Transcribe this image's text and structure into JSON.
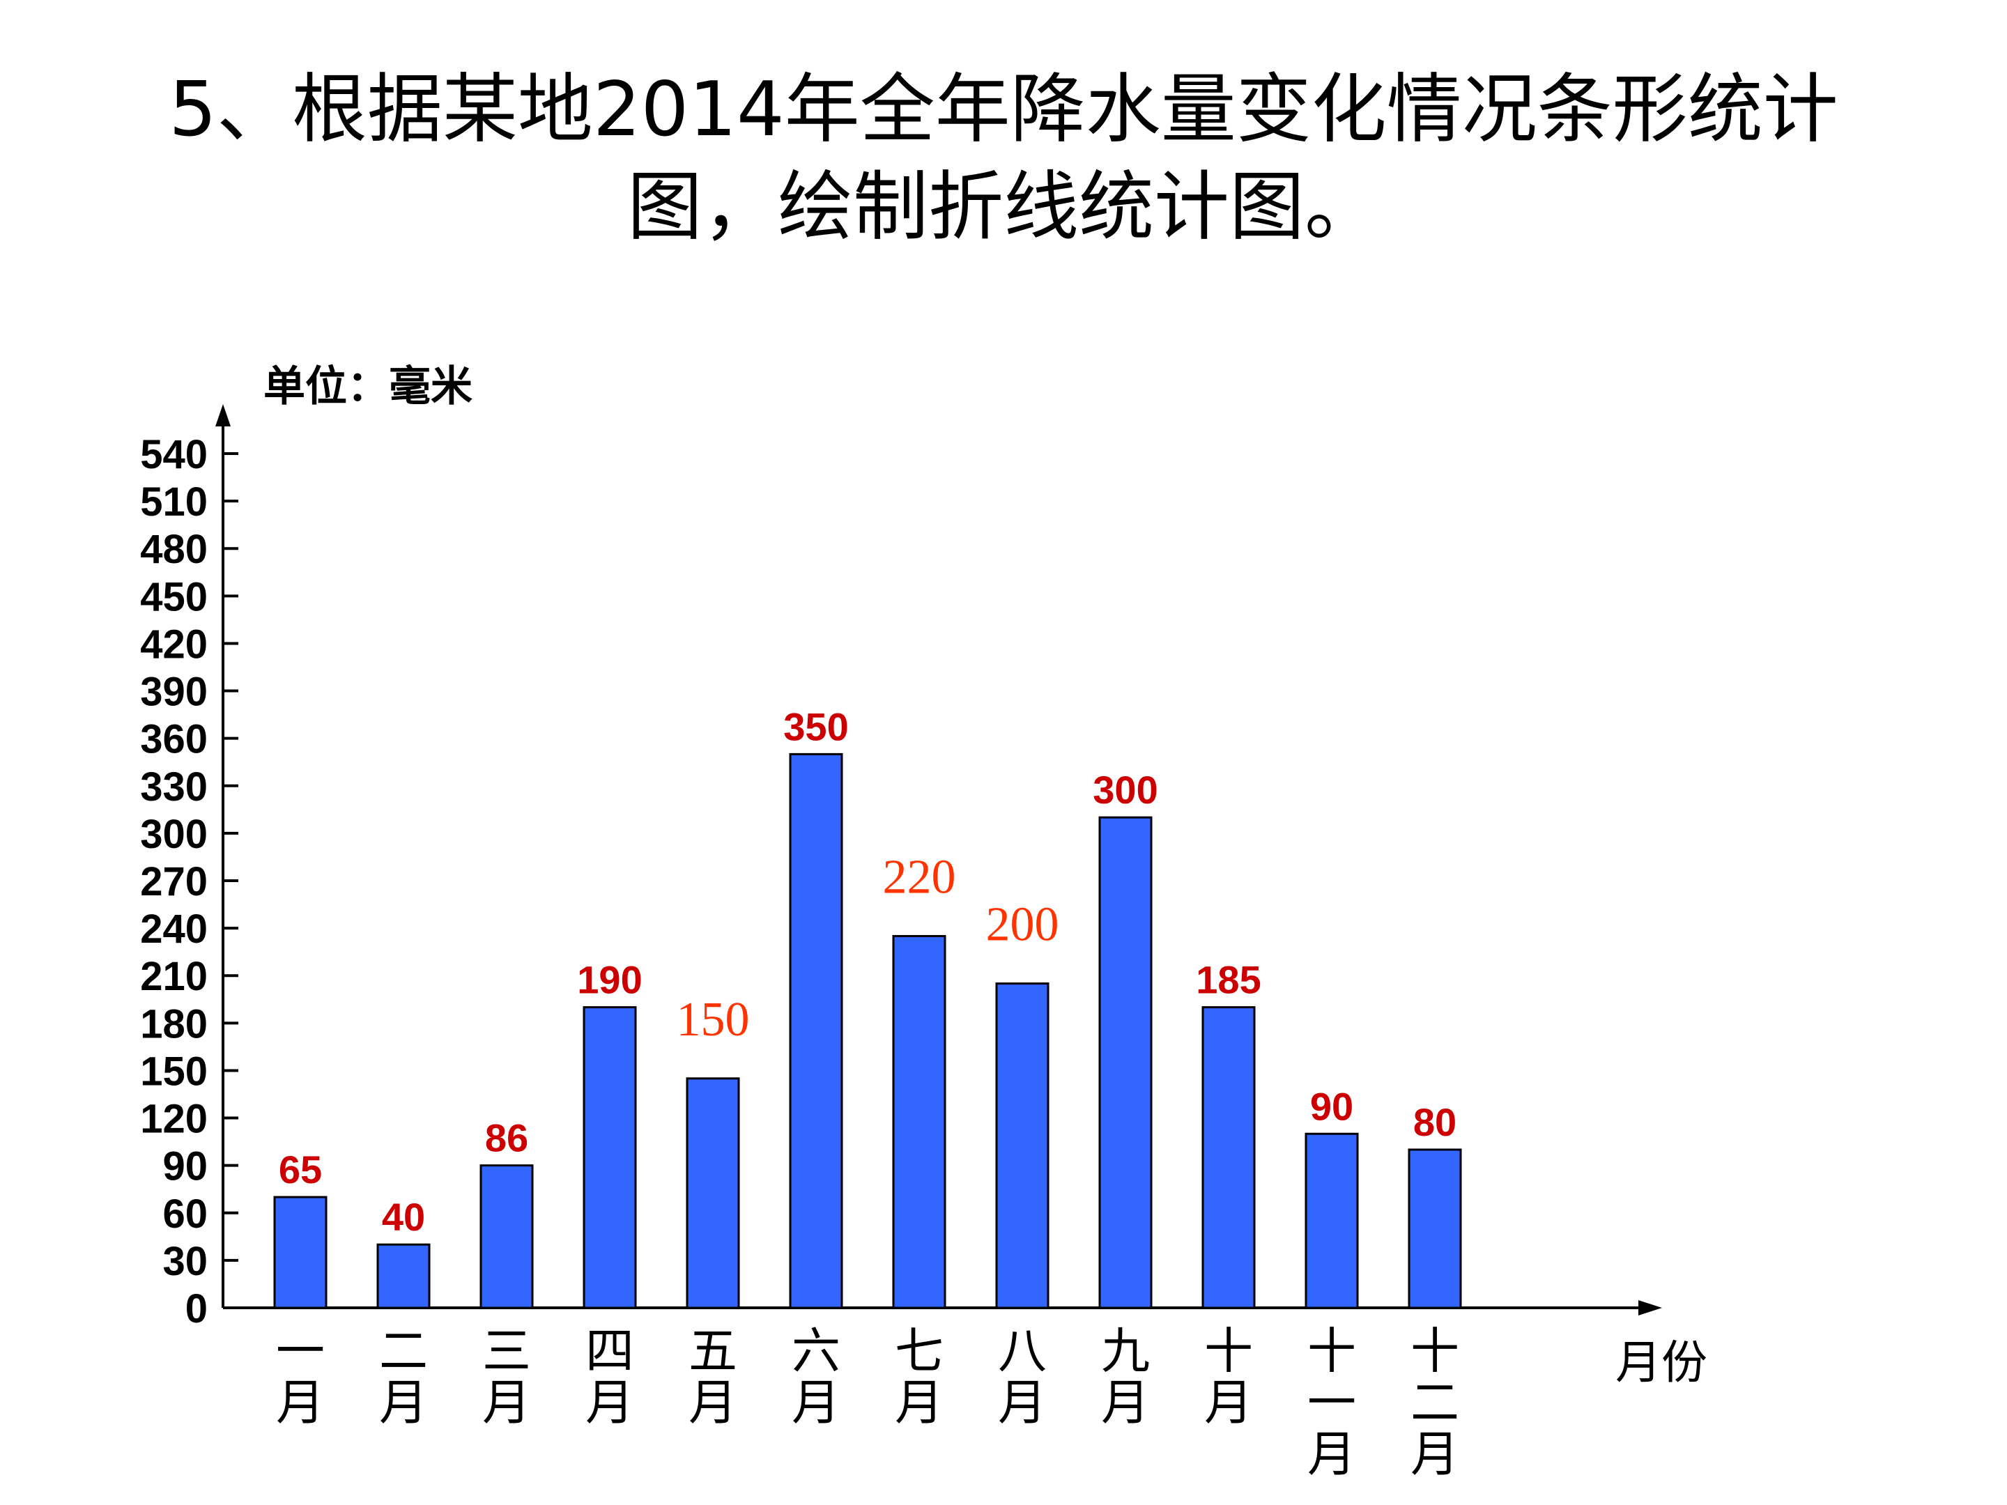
{
  "title": {
    "line1": "5、根据某地2014年全年降水量变化情况条形统计",
    "line2": "图，绘制折线统计图。"
  },
  "chart_data": {
    "type": "bar",
    "unit_label": "单位：毫米",
    "xlabel": "月份",
    "categories": [
      "一月",
      "二月",
      "三月",
      "四月",
      "五月",
      "六月",
      "七月",
      "八月",
      "九月",
      "十月",
      "十一月",
      "十二月"
    ],
    "category_lines": [
      [
        "一",
        "月"
      ],
      [
        "二",
        "月"
      ],
      [
        "三",
        "月"
      ],
      [
        "四",
        "月"
      ],
      [
        "五",
        "月"
      ],
      [
        "六",
        "月"
      ],
      [
        "七",
        "月"
      ],
      [
        "八",
        "月"
      ],
      [
        "九",
        "月"
      ],
      [
        "十",
        "月"
      ],
      [
        "十",
        "一",
        "月"
      ],
      [
        "十",
        "二",
        "月"
      ]
    ],
    "values": [
      65,
      40,
      86,
      190,
      150,
      350,
      220,
      200,
      300,
      185,
      90,
      80
    ],
    "data_labels": [
      "65",
      "40",
      "86",
      "190",
      "150",
      "350",
      "220",
      "200",
      "300",
      "185",
      "90",
      "80"
    ],
    "bar_heights": [
      70,
      40,
      90,
      190,
      145,
      350,
      235,
      205,
      310,
      190,
      110,
      100
    ],
    "label_styles": [
      "bold",
      "bold",
      "bold",
      "bold",
      "serif",
      "bold",
      "serif",
      "serif",
      "bold",
      "bold",
      "bold",
      "bold"
    ],
    "yticks": [
      0,
      30,
      60,
      90,
      120,
      150,
      180,
      210,
      240,
      270,
      300,
      330,
      360,
      390,
      420,
      450,
      480,
      510,
      540
    ],
    "ylim": [
      0,
      540
    ],
    "grid": false,
    "colors": {
      "bar": "#3366ff",
      "bar_outline": "#000000",
      "label_bold": "#cc0000",
      "label_serif": "#ff3300"
    }
  }
}
